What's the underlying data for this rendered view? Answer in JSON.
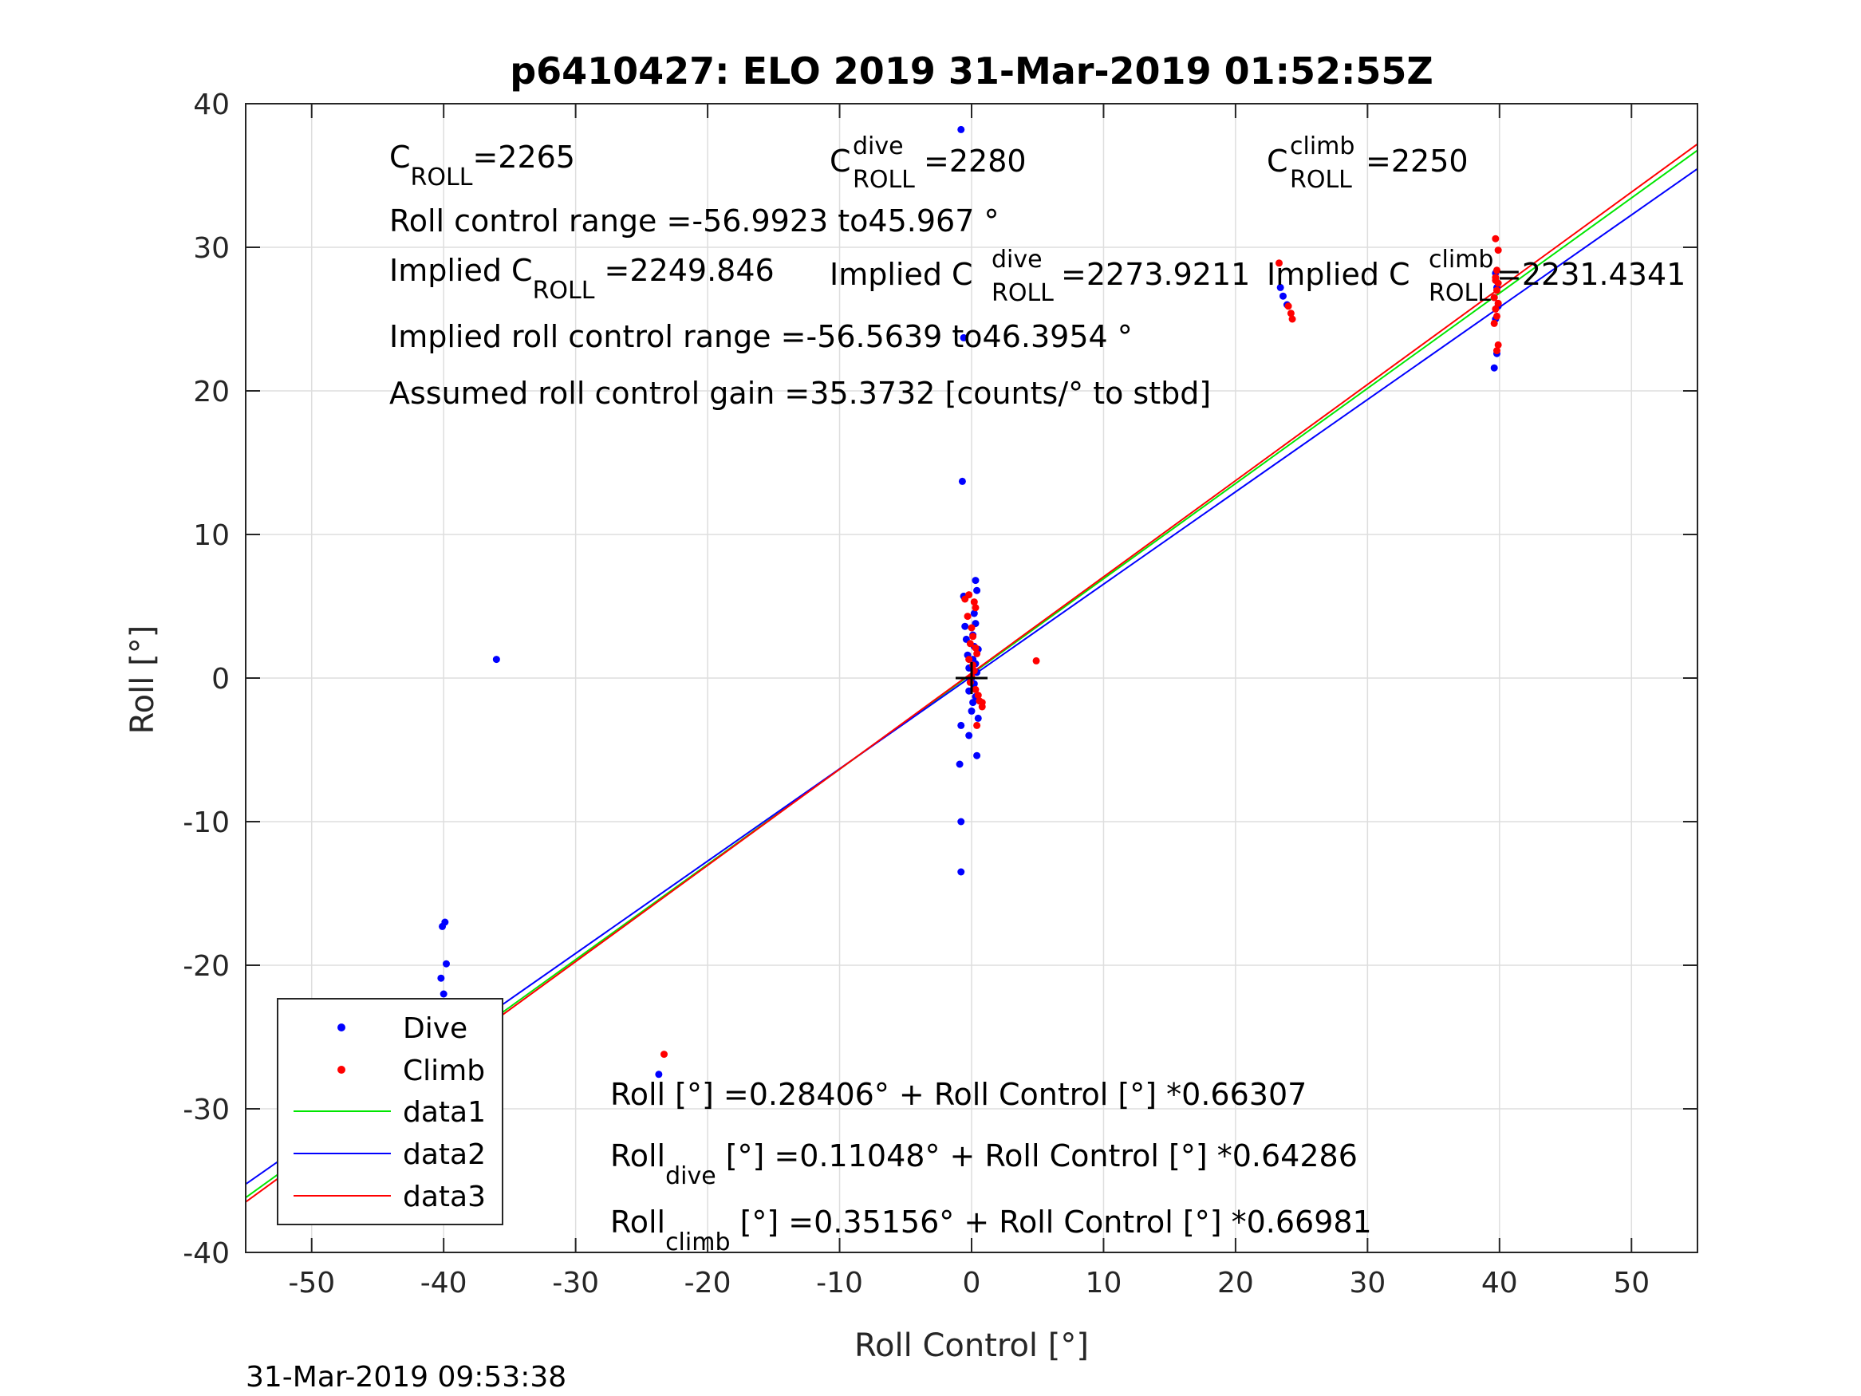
{
  "chart_data": {
    "type": "scatter",
    "title": "p6410427: ELO 2019 31-Mar-2019 01:52:55Z",
    "xlabel": "Roll Control [°]",
    "ylabel": "Roll [°]",
    "xlim": [
      -55,
      55
    ],
    "ylim": [
      -40,
      40
    ],
    "xticks": [
      -50,
      -40,
      -30,
      -20,
      -10,
      0,
      10,
      20,
      30,
      40,
      50
    ],
    "yticks": [
      -40,
      -30,
      -20,
      -10,
      0,
      10,
      20,
      30,
      40
    ],
    "grid": true,
    "legend_position": "bottom-left",
    "series": [
      {
        "name": "Dive",
        "kind": "points",
        "color": "#0000ff",
        "x": [
          -0.8,
          -36,
          -0.6,
          -0.7,
          -0.6,
          0.3,
          0.4,
          0.2,
          0.3,
          -0.5,
          0.1,
          -0.4,
          0.2,
          0.5,
          -0.3,
          0.1,
          0.3,
          -0.2,
          0.4,
          0.0,
          0.2,
          -0.2,
          0.3,
          0.1,
          0.0,
          0.5,
          -0.8,
          -0.2,
          0.4,
          -0.9,
          -0.8,
          -0.8,
          -23.7,
          -39.9,
          -40.1,
          -39.8,
          -40.2,
          -40.0,
          -39.9,
          -40.1,
          -40.0,
          -39.8,
          -40.2,
          -39.9,
          -40.0,
          -40.1,
          -39.7,
          -40.0,
          -39.9,
          23.4,
          23.6,
          23.9,
          39.6,
          39.8,
          39.7,
          39.9,
          39.6,
          39.8,
          39.7
        ],
        "y": [
          38.2,
          1.3,
          23.7,
          13.7,
          5.7,
          6.8,
          6.1,
          4.5,
          3.8,
          3.6,
          3.0,
          2.7,
          2.2,
          2.0,
          1.6,
          1.3,
          1.0,
          0.7,
          0.4,
          0.0,
          -0.4,
          -0.9,
          -1.3,
          -1.7,
          -2.3,
          -2.8,
          -3.3,
          -4.0,
          -5.4,
          -6.0,
          -10.0,
          -13.5,
          -27.6,
          -17.0,
          -17.3,
          -19.9,
          -20.9,
          -22.0,
          -23.1,
          -24.2,
          -25.1,
          -25.8,
          -26.3,
          -26.9,
          -27.2,
          -27.5,
          -28.6,
          -24.5,
          -25.3,
          27.2,
          26.6,
          26.0,
          21.6,
          22.6,
          25.0,
          25.9,
          26.5,
          27.2,
          28.2
        ],
        "note": ""
      },
      {
        "name": "Climb",
        "kind": "points",
        "color": "#ff0000",
        "x": [
          -0.5,
          -0.2,
          0.2,
          0.3,
          -0.3,
          0.0,
          0.1,
          -0.1,
          0.3,
          0.4,
          -0.2,
          0.1,
          0.2,
          0.0,
          -0.1,
          0.3,
          0.5,
          0.6,
          0.8,
          0.8,
          0.4,
          4.9,
          -23.3,
          -40.1,
          -39.8,
          23.3,
          24.0,
          24.2,
          24.3,
          39.7,
          39.9,
          39.8,
          39.7,
          39.9,
          39.8,
          39.6,
          39.9,
          39.7,
          39.8,
          39.6,
          39.9,
          39.8,
          39.7
        ],
        "y": [
          5.5,
          5.8,
          5.3,
          4.9,
          4.3,
          3.5,
          2.9,
          2.4,
          2.1,
          1.7,
          1.3,
          0.9,
          0.5,
          0.1,
          -0.3,
          -0.8,
          -1.2,
          -1.6,
          -2.0,
          -1.7,
          -3.3,
          1.2,
          -26.2,
          -25.8,
          -26.8,
          28.9,
          25.9,
          25.4,
          25.0,
          30.6,
          29.8,
          28.4,
          27.9,
          27.5,
          27.0,
          26.5,
          26.1,
          25.7,
          25.2,
          24.7,
          23.2,
          22.8,
          27.7
        ],
        "note": ""
      },
      {
        "name": "data1",
        "kind": "line",
        "color": "#00e600",
        "intercept": 0.28406,
        "slope": 0.66307,
        "x": [
          -55,
          55
        ]
      },
      {
        "name": "data2",
        "kind": "line",
        "color": "#0000ff",
        "intercept": 0.11048,
        "slope": 0.64286,
        "x": [
          -55,
          55
        ]
      },
      {
        "name": "data3",
        "kind": "line",
        "color": "#ff0000",
        "intercept": 0.35156,
        "slope": 0.66981,
        "x": [
          -55,
          55
        ]
      }
    ]
  },
  "annotations": {
    "c_roll": {
      "base": "C",
      "sub": "ROLL",
      "value": "=2265"
    },
    "c_roll_dive": {
      "base": "C",
      "sup": "dive",
      "sub": "ROLL",
      "value": " =2280"
    },
    "c_roll_climb": {
      "base": "C",
      "sup": "climb",
      "sub": "ROLL",
      "value": " =2250"
    },
    "roll_control_range": "Roll control range =-56.9923 to45.967 °",
    "implied_c_roll": {
      "base": "Implied C",
      "sub": "ROLL",
      "value": " =2249.846"
    },
    "implied_c_roll_dive": {
      "base": "Implied C",
      "sup": "dive",
      "sub": "ROLL",
      "value": " =2273.9211"
    },
    "implied_c_roll_climb": {
      "base": "Implied C",
      "sup": "climb",
      "sub": "ROLL",
      "value": " =2231.4341"
    },
    "implied_range": "Implied roll control range =-56.5639 to46.3954 °",
    "gain": "Assumed roll control gain =35.3732 [counts/° to stbd]",
    "fit_all": "Roll [°] =0.28406° + Roll Control [°] *0.66307",
    "fit_dive": {
      "base": "Roll",
      "sub": "dive",
      "rest": " [°] =0.11048° + Roll Control [°] *0.64286"
    },
    "fit_climb": {
      "base": "Roll",
      "sub": "climb",
      "rest": " [°] =0.35156° + Roll Control [°] *0.66981"
    }
  },
  "timestamp": "31-Mar-2019 09:53:38"
}
